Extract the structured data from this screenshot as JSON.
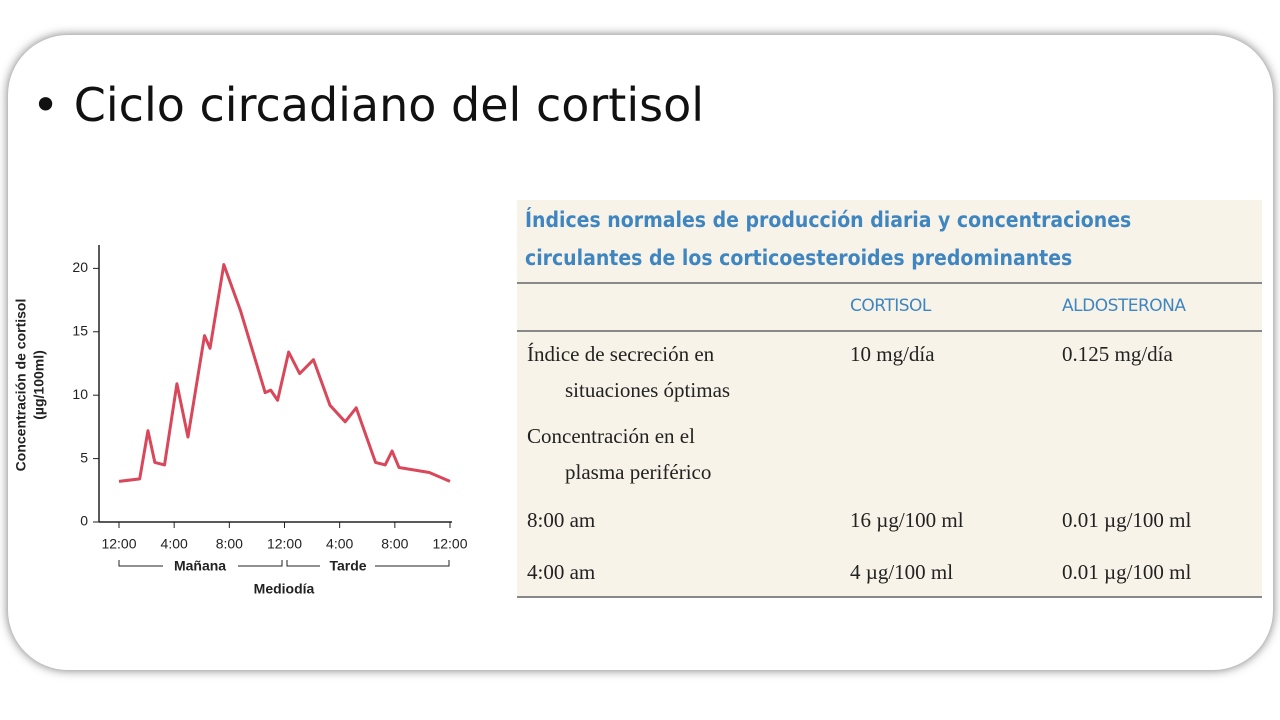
{
  "title": "Ciclo circadiano del cortisol",
  "chart_data": {
    "type": "line",
    "y_label_lines": [
      "Concentración de cortisol",
      "(µg/100ml)"
    ],
    "x_groups": [
      "Mañana",
      "Tarde"
    ],
    "x_label": "Mediodía",
    "x": [
      0,
      1.5,
      2.1,
      2.6,
      3.3,
      4.2,
      5.0,
      6.2,
      6.6,
      7.6,
      8.8,
      10.6,
      11.0,
      11.5,
      12.3,
      13.1,
      14.1,
      15.3,
      16.4,
      17.2,
      18.6,
      19.3,
      19.8,
      20.3,
      22.5,
      24
    ],
    "series": [
      {
        "color": "#d9475a",
        "values": [
          3.2,
          3.4,
          7.2,
          4.7,
          4.5,
          10.9,
          6.7,
          14.7,
          13.7,
          20.3,
          16.7,
          10.2,
          10.4,
          9.6,
          13.4,
          11.7,
          12.8,
          9.2,
          7.9,
          9.0,
          4.7,
          4.5,
          5.6,
          4.3,
          3.9,
          3.2
        ]
      }
    ],
    "xlim": [
      0,
      24
    ],
    "xticks": [
      {
        "value": 0,
        "label": "12:00"
      },
      {
        "value": 4,
        "label": "4:00"
      },
      {
        "value": 8,
        "label": "8:00"
      },
      {
        "value": 12,
        "label": "12:00"
      },
      {
        "value": 16,
        "label": "4:00"
      },
      {
        "value": 20,
        "label": "8:00"
      },
      {
        "value": 24,
        "label": "12:00"
      }
    ],
    "ylim": [
      0,
      22
    ],
    "yticks": [
      0,
      5,
      10,
      15,
      20
    ]
  },
  "table": {
    "title_lines": [
      "Índices normales de producción diaria y concentraciones",
      "circulantes de los corticoesteroides predominantes"
    ],
    "header": [
      "CORTISOL",
      "ALDOSTERONA"
    ],
    "rows": [
      {
        "label": [
          "Índice de secreción en",
          "situaciones óptimas"
        ],
        "values": [
          "10 mg/día",
          "0.125 mg/día"
        ]
      },
      {
        "label": [
          "Concentración en el",
          "plasma periférico"
        ]
      },
      {
        "label": [
          "8:00 am"
        ],
        "values": [
          "16 µg/100 ml",
          "0.01 µg/100 ml"
        ]
      },
      {
        "label": [
          "4:00 am"
        ],
        "values": [
          "4 µg/100 ml",
          "0.01 µg/100 ml"
        ]
      }
    ]
  }
}
